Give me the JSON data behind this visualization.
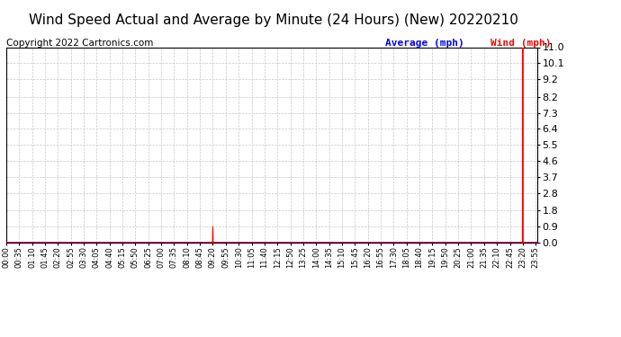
{
  "title": "Wind Speed Actual and Average by Minute (24 Hours) (New) 20220210",
  "copyright": "Copyright 2022 Cartronics.com",
  "legend_average_label": "Average (mph)",
  "legend_wind_label": "Wind (mph)",
  "yticks": [
    0.0,
    0.9,
    1.8,
    2.8,
    3.7,
    4.6,
    5.5,
    6.4,
    7.3,
    8.2,
    9.2,
    10.1,
    11.0
  ],
  "ylim": [
    0.0,
    11.0
  ],
  "total_minutes": 1440,
  "wind_spike1_minute": 560,
  "wind_spike1_value": 0.9,
  "wind_spike2_minute": 1400,
  "wind_spike2_value": 11.0,
  "average_line_value": 0.0,
  "wind_color": "#ff0000",
  "average_color": "#0000ff",
  "background_color": "#ffffff",
  "grid_color": "#c8c8c8",
  "title_fontsize": 11,
  "copyright_fontsize": 7.5,
  "tick_label_fontsize": 6,
  "ytick_label_fontsize": 8,
  "xtick_labels": [
    "00:00",
    "00:35",
    "01:10",
    "01:45",
    "02:20",
    "02:55",
    "03:30",
    "04:05",
    "04:40",
    "05:15",
    "05:50",
    "06:25",
    "07:00",
    "07:35",
    "08:10",
    "08:45",
    "09:20",
    "09:55",
    "10:30",
    "11:05",
    "11:40",
    "12:15",
    "12:50",
    "13:25",
    "14:00",
    "14:35",
    "15:10",
    "15:45",
    "16:20",
    "16:55",
    "17:30",
    "18:05",
    "18:40",
    "19:15",
    "19:50",
    "20:25",
    "21:00",
    "21:35",
    "22:10",
    "22:45",
    "23:20",
    "23:55"
  ]
}
